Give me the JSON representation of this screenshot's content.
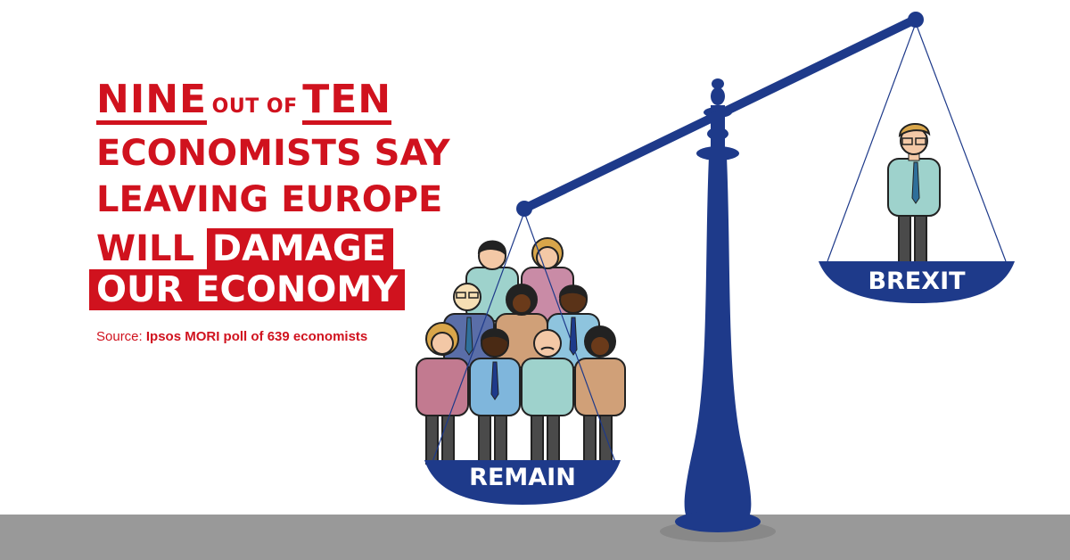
{
  "headline": {
    "nine": "NINE",
    "out_of": "OUT OF",
    "ten": "TEN",
    "line2": "ECONOMISTS SAY",
    "line3": "LEAVING EUROPE",
    "will": "WILL",
    "damage": "DAMAGE",
    "line5": "OUR ECONOMY"
  },
  "source": {
    "prefix": "Source:",
    "text": "Ipsos MORI poll of 639 economists"
  },
  "scale": {
    "left_label": "REMAIN",
    "right_label": "BREXIT"
  },
  "colors": {
    "accent_red": "#d0121e",
    "scale_blue": "#1e3a8a",
    "floor_grey": "#999999"
  }
}
